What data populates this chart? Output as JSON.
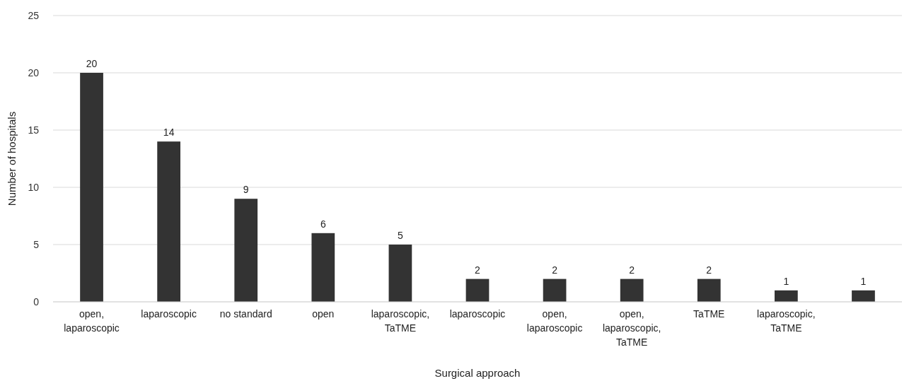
{
  "chart_data": {
    "type": "bar",
    "xlabel": "Surgical approach",
    "ylabel": "Number of hospitals",
    "categories": [
      "open, laparoscopic",
      "laparoscopic",
      "no standard",
      "open",
      "laparoscopic, TaTME",
      "laparoscopic",
      "open, laparoscopic",
      "open, laparoscopic, TaTME",
      "TaTME",
      "laparoscopic, TaTME",
      null
    ],
    "values": [
      20,
      14,
      9,
      6,
      5,
      2,
      2,
      2,
      2,
      1,
      1
    ],
    "color": "#333333",
    "ylim": [
      0,
      25
    ],
    "yticks": [
      0,
      5,
      10,
      15,
      20,
      25
    ],
    "grid": "y",
    "data_labels": true
  }
}
